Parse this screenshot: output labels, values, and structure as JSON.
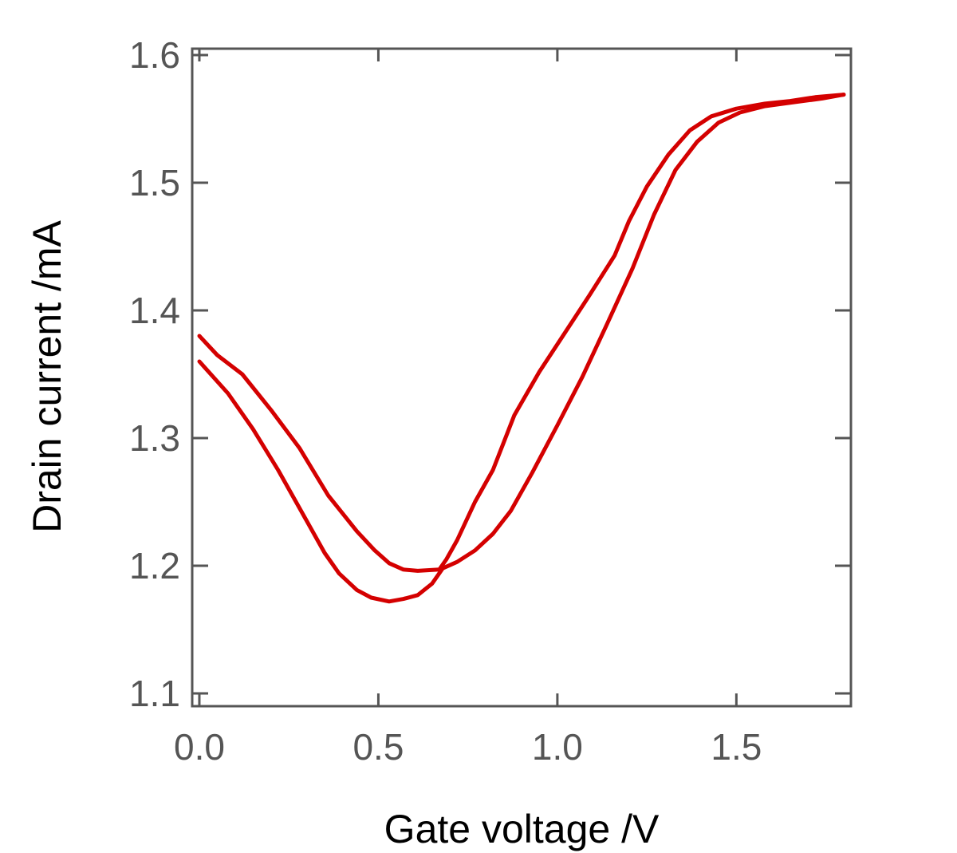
{
  "chart_data": {
    "type": "line",
    "xlabel": "Gate voltage /V",
    "ylabel": "Drain current /mA",
    "xlim": [
      -0.02,
      1.82
    ],
    "ylim": [
      1.09,
      1.605
    ],
    "x_ticks": [
      0.0,
      0.5,
      1.0,
      1.5
    ],
    "x_tick_labels": [
      "0.0",
      "0.5",
      "1.0",
      "1.5"
    ],
    "y_ticks": [
      1.1,
      1.2,
      1.3,
      1.4,
      1.5,
      1.6
    ],
    "y_tick_labels": [
      "1.1",
      "1.2",
      "1.3",
      "1.4",
      "1.5",
      "1.6"
    ],
    "grid": false,
    "line_color": "#d40000",
    "series": [
      {
        "points": [
          [
            0.0,
            1.38
          ],
          [
            0.05,
            1.365
          ],
          [
            0.12,
            1.35
          ],
          [
            0.2,
            1.322
          ],
          [
            0.28,
            1.292
          ],
          [
            0.36,
            1.255
          ],
          [
            0.44,
            1.227
          ],
          [
            0.49,
            1.212
          ],
          [
            0.53,
            1.202
          ],
          [
            0.57,
            1.197
          ],
          [
            0.61,
            1.196
          ],
          [
            0.67,
            1.197
          ],
          [
            0.69,
            1.205
          ],
          [
            0.72,
            1.22
          ],
          [
            0.77,
            1.25
          ],
          [
            0.82,
            1.275
          ],
          [
            0.88,
            1.318
          ],
          [
            0.95,
            1.352
          ],
          [
            1.02,
            1.382
          ],
          [
            1.09,
            1.412
          ],
          [
            1.16,
            1.443
          ],
          [
            1.2,
            1.47
          ],
          [
            1.25,
            1.497
          ],
          [
            1.31,
            1.522
          ],
          [
            1.37,
            1.541
          ],
          [
            1.43,
            1.552
          ],
          [
            1.5,
            1.558
          ],
          [
            1.58,
            1.562
          ],
          [
            1.65,
            1.564
          ],
          [
            1.72,
            1.567
          ],
          [
            1.8,
            1.569
          ]
        ]
      },
      {
        "points": [
          [
            0.0,
            1.36
          ],
          [
            0.08,
            1.335
          ],
          [
            0.15,
            1.307
          ],
          [
            0.22,
            1.275
          ],
          [
            0.29,
            1.24
          ],
          [
            0.35,
            1.21
          ],
          [
            0.39,
            1.194
          ],
          [
            0.44,
            1.181
          ],
          [
            0.48,
            1.175
          ],
          [
            0.53,
            1.172
          ],
          [
            0.57,
            1.174
          ],
          [
            0.61,
            1.177
          ],
          [
            0.65,
            1.186
          ],
          [
            0.68,
            1.198
          ],
          [
            0.72,
            1.203
          ],
          [
            0.77,
            1.212
          ],
          [
            0.82,
            1.225
          ],
          [
            0.87,
            1.243
          ],
          [
            0.93,
            1.273
          ],
          [
            1.0,
            1.31
          ],
          [
            1.07,
            1.348
          ],
          [
            1.14,
            1.39
          ],
          [
            1.21,
            1.433
          ],
          [
            1.27,
            1.475
          ],
          [
            1.33,
            1.51
          ],
          [
            1.39,
            1.532
          ],
          [
            1.45,
            1.547
          ],
          [
            1.51,
            1.555
          ],
          [
            1.58,
            1.56
          ],
          [
            1.66,
            1.563
          ],
          [
            1.74,
            1.566
          ],
          [
            1.8,
            1.569
          ]
        ]
      }
    ]
  }
}
